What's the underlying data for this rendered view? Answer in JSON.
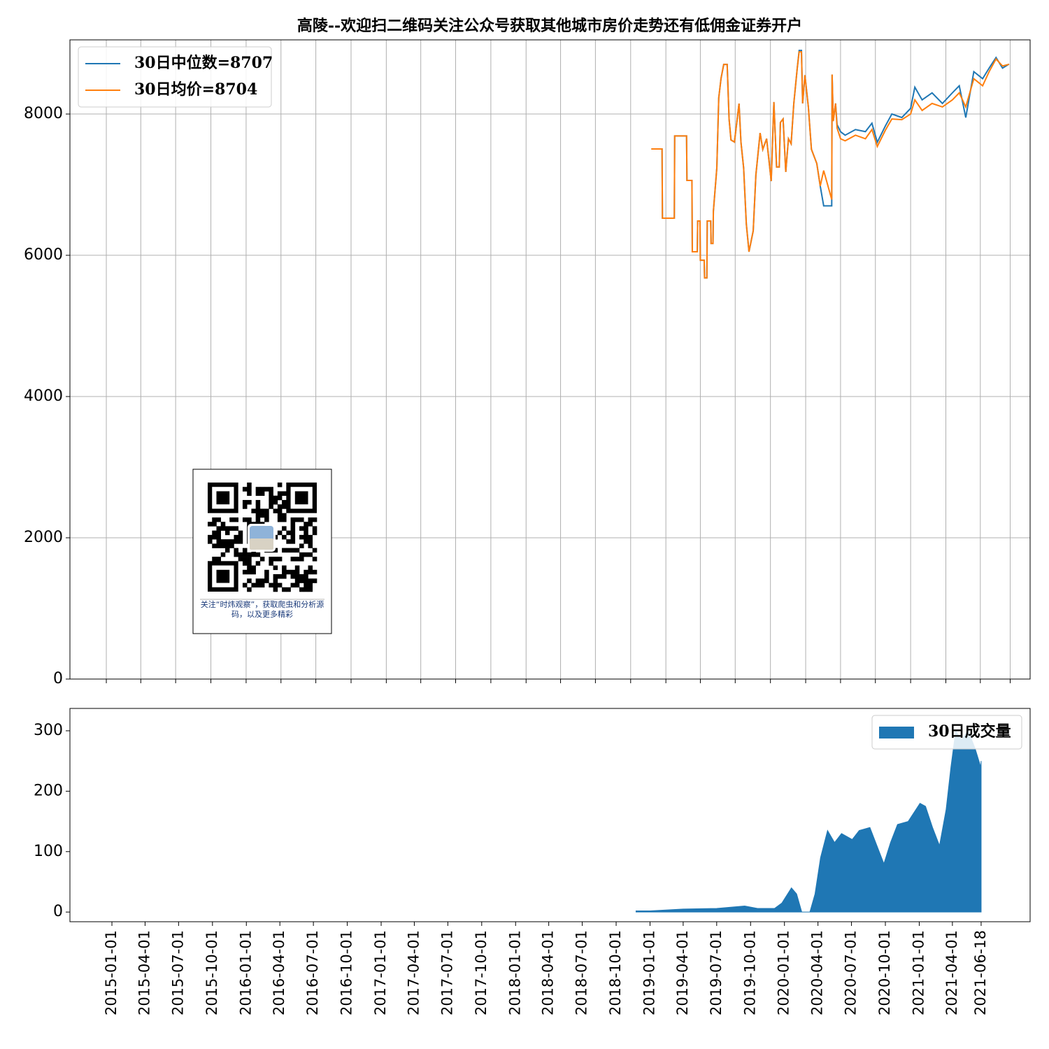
{
  "chart_data": [
    {
      "type": "line",
      "title": "高陵--欢迎扫二维码关注公众号获取其他城市房价走势还有低佣金证券开户",
      "annotation": "关注“时炜观察”，获取爬虫和分析源码，以及更多精彩",
      "x": [
        "2018-11-24",
        "2018-12-22",
        "2018-12-23",
        "2019-01-23",
        "2019-01-24",
        "2019-02-24",
        "2019-02-25",
        "2019-03-10",
        "2019-03-11",
        "2019-03-24",
        "2019-03-25",
        "2019-03-31",
        "2019-04-01",
        "2019-04-11",
        "2019-04-12",
        "2019-04-18",
        "2019-04-19",
        "2019-04-28",
        "2019-04-29",
        "2019-05-04",
        "2019-05-05",
        "2019-05-14",
        "2019-05-19",
        "2019-05-25",
        "2019-06-01",
        "2019-06-10",
        "2019-06-15",
        "2019-06-20",
        "2019-06-29",
        "2019-07-11",
        "2019-07-16",
        "2019-07-23",
        "2019-07-30",
        "2019-08-06",
        "2019-08-17",
        "2019-08-24",
        "2019-09-04",
        "2019-09-11",
        "2019-09-21",
        "2019-10-03",
        "2019-10-10",
        "2019-10-17",
        "2019-10-24",
        "2019-10-27",
        "2019-11-03",
        "2019-11-10",
        "2019-11-17",
        "2019-11-24",
        "2019-12-01",
        "2019-12-10",
        "2019-12-15",
        "2019-12-21",
        "2019-12-24",
        "2019-12-30",
        "2020-01-08",
        "2020-01-16",
        "2020-01-30",
        "2020-02-08",
        "2020-02-17",
        "2020-03-09",
        "2020-03-10",
        "2020-03-13",
        "2020-03-19",
        "2020-03-23",
        "2020-04-01",
        "2020-04-13",
        "2020-05-10",
        "2020-06-05",
        "2020-06-22",
        "2020-07-06",
        "2020-07-27",
        "2020-08-13",
        "2020-09-08",
        "2020-10-01",
        "2020-10-12",
        "2020-10-31",
        "2020-11-26",
        "2020-12-23",
        "2021-01-18",
        "2021-02-05",
        "2021-02-22",
        "2021-03-15",
        "2021-04-07",
        "2021-04-24",
        "2021-05-12",
        "2021-05-29",
        "2021-06-15"
      ],
      "series": [
        {
          "name": "30日中位数=8707",
          "color": "#1f77b4",
          "values": [
            7505,
            7505,
            6525,
            6525,
            7690,
            7690,
            7060,
            7060,
            6050,
            6050,
            6485,
            6485,
            5930,
            5930,
            5680,
            5680,
            6485,
            6485,
            6168,
            6168,
            6623,
            7237,
            8227,
            8504,
            8702,
            8702,
            7930,
            7633,
            7603,
            8148,
            7603,
            7237,
            6445,
            6050,
            6346,
            7138,
            7732,
            7500,
            7650,
            7050,
            8170,
            7250,
            7250,
            7880,
            7930,
            7180,
            7650,
            7580,
            8150,
            8650,
            8900,
            8900,
            8150,
            8550,
            8100,
            7500,
            7300,
            6980,
            6700,
            6700,
            8560,
            7900,
            8150,
            7850,
            7750,
            7700,
            7780,
            7750,
            7870,
            7600,
            7830,
            8000,
            7950,
            8080,
            8380,
            8200,
            8300,
            8150,
            8300,
            8400,
            7950,
            8600,
            8500,
            8650,
            8800,
            8650,
            8707
          ]
        },
        {
          "name": "30日均价=8704",
          "color": "#ff7f0e",
          "values": [
            7505,
            7505,
            6525,
            6525,
            7690,
            7690,
            7060,
            7060,
            6050,
            6050,
            6485,
            6485,
            5930,
            5930,
            5680,
            5680,
            6485,
            6485,
            6168,
            6168,
            6623,
            7237,
            8227,
            8504,
            8702,
            8702,
            7930,
            7633,
            7603,
            8148,
            7603,
            7237,
            6445,
            6050,
            6346,
            7138,
            7732,
            7500,
            7650,
            7050,
            8170,
            7250,
            7250,
            7880,
            7930,
            7180,
            7650,
            7580,
            8150,
            8650,
            8880,
            8880,
            8150,
            8550,
            8100,
            7500,
            7300,
            6980,
            7200,
            6790,
            8560,
            7900,
            8150,
            7800,
            7650,
            7620,
            7700,
            7650,
            7780,
            7540,
            7770,
            7930,
            7920,
            8000,
            8200,
            8050,
            8150,
            8100,
            8200,
            8300,
            8100,
            8500,
            8400,
            8600,
            8780,
            8680,
            8704
          ]
        }
      ],
      "xlim": [
        "2014-09-28",
        "2021-08-09"
      ],
      "xticks": [
        "2015-01-01",
        "2015-04-01",
        "2015-07-01",
        "2015-10-01",
        "2016-01-01",
        "2016-04-01",
        "2016-07-01",
        "2016-10-01",
        "2017-01-01",
        "2017-04-01",
        "2017-07-01",
        "2017-10-01",
        "2018-01-01",
        "2018-04-01",
        "2018-07-01",
        "2018-10-01",
        "2019-01-01",
        "2019-04-01",
        "2019-07-01",
        "2019-10-01",
        "2020-01-01",
        "2020-04-01",
        "2020-07-01",
        "2020-10-01",
        "2021-01-01",
        "2021-04-01",
        "2021-06-18"
      ],
      "xtick_labels": false,
      "ylim": [
        0,
        9050
      ],
      "yticks": [
        0,
        2000,
        4000,
        6000,
        8000
      ],
      "grid": true,
      "legend": "upper left"
    },
    {
      "type": "area",
      "x": [
        "2018-11-24",
        "2019-01-01",
        "2019-04-01",
        "2019-07-01",
        "2019-09-15",
        "2019-10-20",
        "2019-12-05",
        "2019-12-25",
        "2020-01-20",
        "2020-02-03",
        "2020-02-17",
        "2020-03-10",
        "2020-03-24",
        "2020-04-08",
        "2020-04-27",
        "2020-05-16",
        "2020-06-04",
        "2020-07-03",
        "2020-07-22",
        "2020-08-20",
        "2020-09-08",
        "2020-09-27",
        "2020-10-15",
        "2020-11-03",
        "2020-12-02",
        "2021-01-03",
        "2021-01-18",
        "2021-02-06",
        "2021-02-25",
        "2021-03-15",
        "2021-03-28",
        "2021-04-10",
        "2021-04-25",
        "2021-05-14",
        "2021-06-02",
        "2021-06-17",
        "2021-06-18"
      ],
      "series": [
        {
          "name": "30日成交量",
          "color": "#1f77b4",
          "values": [
            2,
            2,
            5,
            6,
            10,
            6,
            6,
            15,
            40,
            30,
            0,
            0,
            30,
            90,
            135,
            115,
            130,
            120,
            135,
            140,
            110,
            80,
            115,
            145,
            150,
            180,
            175,
            140,
            110,
            170,
            240,
            300,
            285,
            300,
            270,
            240,
            250
          ]
        }
      ],
      "xlim": [
        "2014-09-09",
        "2021-10-29"
      ],
      "xticks": [
        "2015-01-01",
        "2015-04-01",
        "2015-07-01",
        "2015-10-01",
        "2016-01-01",
        "2016-04-01",
        "2016-07-01",
        "2016-10-01",
        "2017-01-01",
        "2017-04-01",
        "2017-07-01",
        "2017-10-01",
        "2018-01-01",
        "2018-04-01",
        "2018-07-01",
        "2018-10-01",
        "2019-01-01",
        "2019-04-01",
        "2019-07-01",
        "2019-10-01",
        "2020-01-01",
        "2020-04-01",
        "2020-07-01",
        "2020-10-01",
        "2021-01-01",
        "2021-04-01",
        "2021-06-18"
      ],
      "xtick_labels": true,
      "ylim": [
        -16,
        337
      ],
      "yticks": [
        0,
        100,
        200,
        300
      ],
      "grid": false,
      "legend": "upper right"
    }
  ]
}
